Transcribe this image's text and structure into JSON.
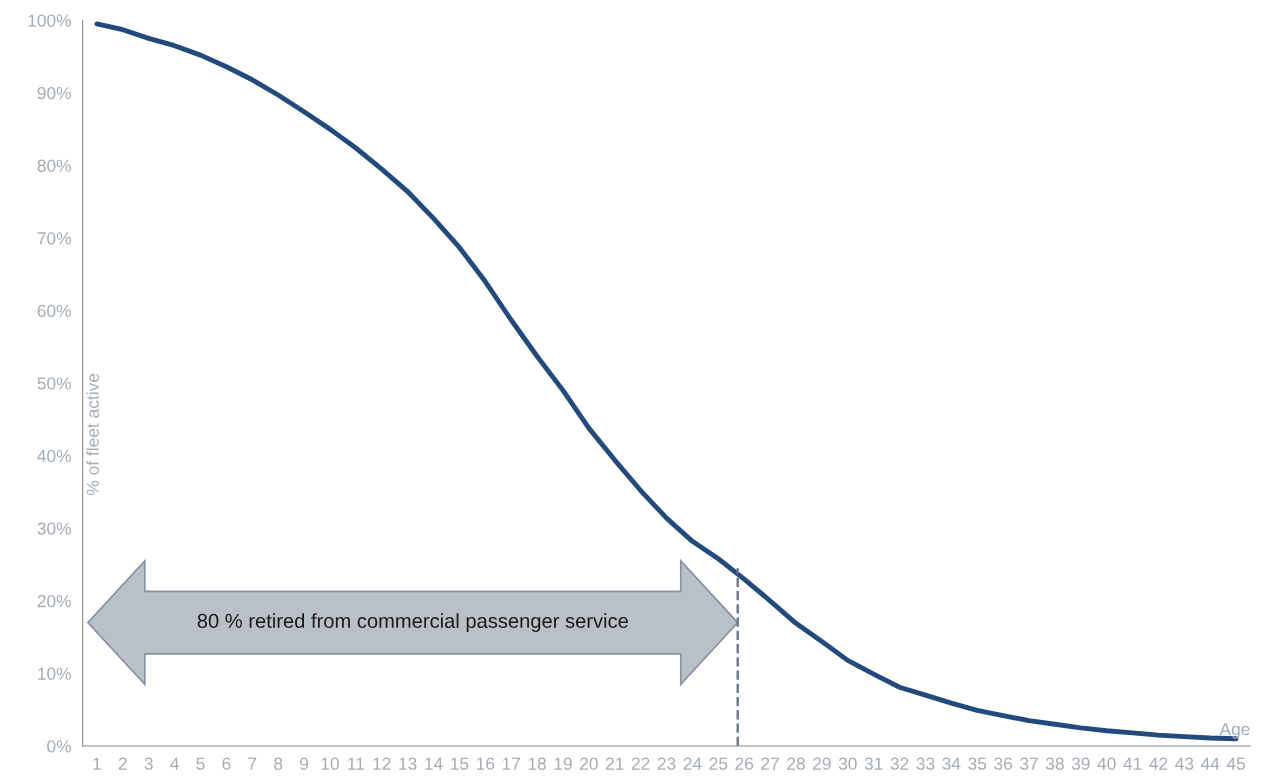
{
  "chart_data": {
    "type": "line",
    "ylabel": "% of fleet active",
    "xlabel": "Age",
    "categories": [
      "1",
      "2",
      "3",
      "4",
      "5",
      "6",
      "7",
      "8",
      "9",
      "10",
      "11",
      "12",
      "13",
      "14",
      "15",
      "16",
      "17",
      "18",
      "19",
      "20",
      "21",
      "22",
      "23",
      "24",
      "25",
      "26",
      "27",
      "28",
      "29",
      "30",
      "31",
      "32",
      "33",
      "34",
      "35",
      "36",
      "37",
      "38",
      "39",
      "40",
      "41",
      "42",
      "43",
      "44",
      "45"
    ],
    "series": [
      {
        "color": "#234a7c",
        "values": [
          99.5,
          98.7,
          97.5,
          96.5,
          95.2,
          93.6,
          91.8,
          89.7,
          87.4,
          85.0,
          82.4,
          79.5,
          76.4,
          72.7,
          68.7,
          64.0,
          58.7,
          53.7,
          49.0,
          43.8,
          39.4,
          35.2,
          31.4,
          28.2,
          25.8,
          23.0,
          20.0,
          16.9,
          14.4,
          11.8,
          9.9,
          8.1,
          7.0,
          5.9,
          4.9,
          4.2,
          3.5,
          3.0,
          2.5,
          2.1,
          1.8,
          1.5,
          1.3,
          1.1,
          1.0
        ]
      }
    ],
    "ylim": [
      0,
      100
    ],
    "yticks": [
      {
        "value": 0,
        "label": "0%"
      },
      {
        "value": 10,
        "label": "10%"
      },
      {
        "value": 20,
        "label": "20%"
      },
      {
        "value": 30,
        "label": "30%"
      },
      {
        "value": 40,
        "label": "40%"
      },
      {
        "value": 50,
        "label": "50%"
      },
      {
        "value": 60,
        "label": "60%"
      },
      {
        "value": 70,
        "label": "70%"
      },
      {
        "value": 80,
        "label": "80%"
      },
      {
        "value": 90,
        "label": "90%"
      },
      {
        "value": 100,
        "label": "100%"
      }
    ],
    "grid": false,
    "marker": "none",
    "line_style": "solid",
    "ref_lines": [
      {
        "axis": "x",
        "value": "26",
        "color": "#6e7c8c",
        "line_style": "dashed"
      }
    ],
    "annotations": [
      "80 % retired from commercial passenger service"
    ]
  }
}
